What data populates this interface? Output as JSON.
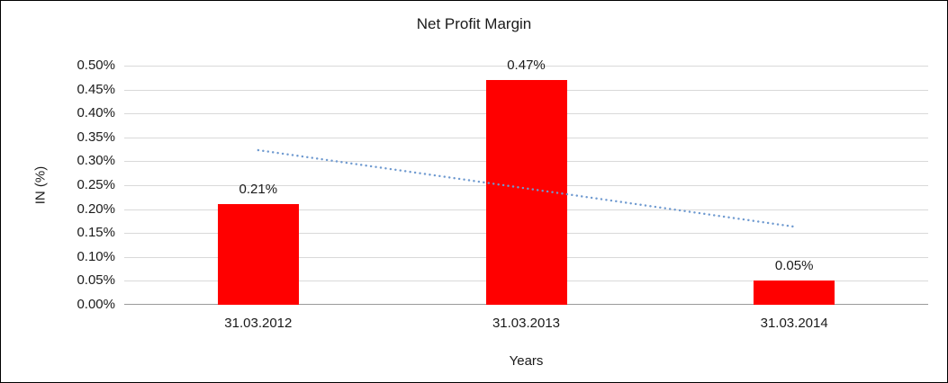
{
  "chart_data": {
    "type": "bar",
    "title": "Net Profit Margin",
    "xlabel": "Years",
    "ylabel": "IN (%)",
    "categories": [
      "31.03.2012",
      "31.03.2013",
      "31.03.2014"
    ],
    "values": [
      0.21,
      0.47,
      0.05
    ],
    "data_labels": [
      "0.21%",
      "0.47%",
      "0.05%"
    ],
    "ylim": [
      0,
      0.5
    ],
    "ytick_step": 0.05,
    "ytick_labels": [
      "0.00%",
      "0.05%",
      "0.10%",
      "0.15%",
      "0.20%",
      "0.25%",
      "0.30%",
      "0.35%",
      "0.40%",
      "0.45%",
      "0.50%"
    ],
    "grid": true,
    "legend": "none",
    "bar_color": "#ff0000",
    "gridline_color": "#d9d9d9",
    "axis_color": "#9a9a9a",
    "trendline": {
      "type": "linear",
      "style": "dotted",
      "color": "#6f9ad0",
      "start_value": 0.3233,
      "end_value": 0.1633
    }
  }
}
